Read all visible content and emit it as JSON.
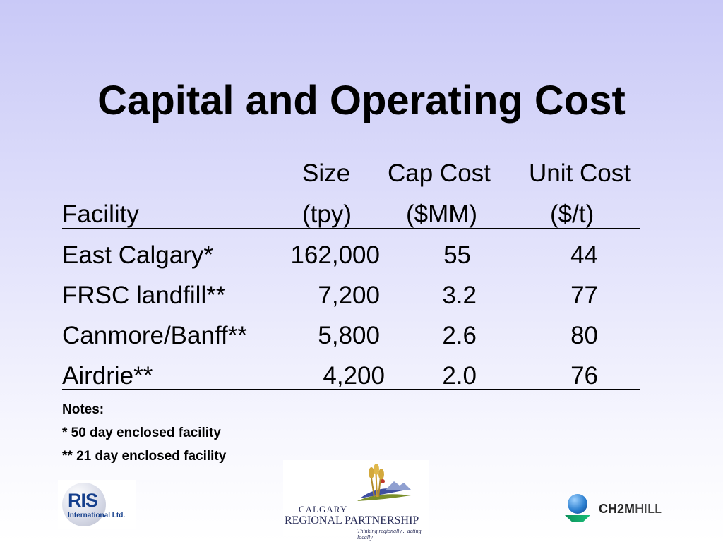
{
  "title": "Capital and Operating Cost",
  "table": {
    "header1": {
      "size": "Size",
      "cap": "Cap Cost",
      "unit": "Unit Cost"
    },
    "header2": {
      "facility": "Facility",
      "size": "(tpy)",
      "cap": "($MM)",
      "unit": "($/t)"
    },
    "rows": [
      {
        "facility": "East Calgary*",
        "size": "162,000",
        "cap": "55",
        "unit": "44"
      },
      {
        "facility": "FRSC landfill**",
        "size": "7,200",
        "cap": "3.2",
        "unit": "77"
      },
      {
        "facility": "Canmore/Banff**",
        "size": "5,800",
        "cap": "2.6",
        "unit": "80"
      },
      {
        "facility": "Airdrie**",
        "size": "4,200",
        "cap": "2.0",
        "unit": "76"
      }
    ]
  },
  "notes": {
    "heading": "Notes:",
    "items": [
      "* 50 day enclosed facility",
      "** 21 day enclosed facility"
    ]
  },
  "logos": {
    "ris": {
      "name": "RIS",
      "sub": "International Ltd."
    },
    "crp": {
      "line1": "CALGARY",
      "line2": "REGIONAL PARTNERSHIP",
      "tagline": "Thinking regionally... acting locally"
    },
    "ch2m": {
      "bold": "CH2M",
      "light": "HILL"
    }
  },
  "colors": {
    "background_top": "#c9c9f7",
    "background_bottom": "#ffffff",
    "ris_blue": "#153f8c",
    "ch2m_globe": "#2c7fd0"
  }
}
